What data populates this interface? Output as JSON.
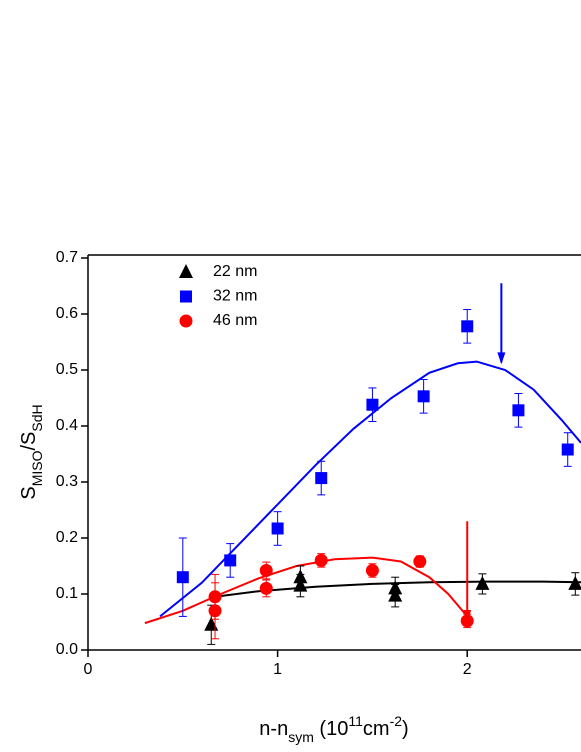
{
  "chart_data": {
    "type": "scatter",
    "xlabel": [
      {
        "text": "n-n"
      },
      {
        "text": "sym",
        "shift": "sub"
      },
      {
        "text": " (10"
      },
      {
        "text": "11",
        "shift": "sup"
      },
      {
        "text": "cm"
      },
      {
        "text": "-2",
        "shift": "sup"
      },
      {
        "text": ")"
      }
    ],
    "ylabel": [
      {
        "text": "S"
      },
      {
        "text": "MISO",
        "shift": "sub"
      },
      {
        "text": "/S"
      },
      {
        "text": "SdH",
        "shift": "sub"
      }
    ],
    "xlim": [
      0,
      2.6
    ],
    "ylim": [
      0,
      0.7
    ],
    "xticks": [
      0,
      1,
      2
    ],
    "yticks": [
      {
        "value": 0,
        "label": "0.0"
      },
      0.1,
      0.2,
      0.3,
      0.4,
      0.5,
      0.6,
      0.7
    ],
    "legend": "upper left",
    "series": [
      {
        "name": "22 nm",
        "color": "#000000",
        "marker": "triangle",
        "x": [
          0.65,
          1.12,
          1.12,
          1.62,
          1.62,
          2.08,
          2.57
        ],
        "values": [
          0.045,
          0.13,
          0.115,
          0.11,
          0.097,
          0.118,
          0.118
        ],
        "errors": [
          0.035,
          0.02,
          0.02,
          0.02,
          0.02,
          0.018,
          0.02
        ]
      },
      {
        "name": "32 nm",
        "color": "#0000ff",
        "marker": "square",
        "x": [
          0.5,
          0.75,
          1.0,
          1.23,
          1.5,
          1.77,
          2.0,
          2.27,
          2.53
        ],
        "values": [
          0.13,
          0.16,
          0.217,
          0.307,
          0.438,
          0.453,
          0.578,
          0.428,
          0.358
        ],
        "errors": [
          0.07,
          0.03,
          0.03,
          0.03,
          0.03,
          0.03,
          0.03,
          0.03,
          0.03
        ]
      },
      {
        "name": "46 nm",
        "color": "#ff0000",
        "marker": "circle",
        "x": [
          0.67,
          0.67,
          0.94,
          0.94,
          1.23,
          1.5,
          1.75,
          2.0
        ],
        "values": [
          0.07,
          0.095,
          0.11,
          0.142,
          0.16,
          0.142,
          0.158,
          0.052
        ],
        "errors": [
          0.05,
          0.04,
          0.015,
          0.015,
          0.012,
          0.012,
          0.01,
          0.012
        ]
      }
    ],
    "fits": [
      {
        "color": "#000000",
        "x": [
          0.67,
          0.9,
          1.2,
          1.5,
          1.8,
          2.1,
          2.4,
          2.6
        ],
        "values": [
          0.095,
          0.105,
          0.113,
          0.118,
          0.121,
          0.122,
          0.122,
          0.121
        ]
      },
      {
        "color": "#0000ff",
        "x": [
          0.38,
          0.6,
          0.8,
          1.0,
          1.2,
          1.4,
          1.6,
          1.8,
          1.95,
          2.05,
          2.2,
          2.35,
          2.5,
          2.6
        ],
        "values": [
          0.06,
          0.12,
          0.19,
          0.26,
          0.33,
          0.395,
          0.45,
          0.495,
          0.512,
          0.515,
          0.5,
          0.465,
          0.41,
          0.37
        ]
      },
      {
        "color": "#ff0000",
        "x": [
          0.3,
          0.5,
          0.7,
          0.9,
          1.1,
          1.3,
          1.5,
          1.65,
          1.8,
          1.9,
          2.0
        ],
        "values": [
          0.048,
          0.07,
          0.1,
          0.128,
          0.15,
          0.162,
          0.165,
          0.158,
          0.13,
          0.1,
          0.06
        ]
      }
    ],
    "arrows": [
      {
        "color": "#0000ff",
        "x": 2.18,
        "from": 0.655,
        "to": 0.51
      },
      {
        "color": "#ff0000",
        "x": 2.0,
        "from": 0.23,
        "to": 0.05
      }
    ]
  }
}
